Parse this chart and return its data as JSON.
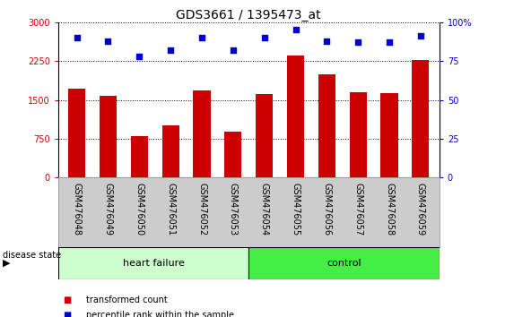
{
  "title": "GDS3661 / 1395473_at",
  "categories": [
    "GSM476048",
    "GSM476049",
    "GSM476050",
    "GSM476051",
    "GSM476052",
    "GSM476053",
    "GSM476054",
    "GSM476055",
    "GSM476056",
    "GSM476057",
    "GSM476058",
    "GSM476059"
  ],
  "bar_values": [
    1720,
    1580,
    800,
    1000,
    1680,
    880,
    1620,
    2350,
    2000,
    1650,
    1630,
    2270
  ],
  "scatter_values": [
    90,
    88,
    78,
    82,
    90,
    82,
    90,
    95,
    88,
    87,
    87,
    91
  ],
  "bar_color": "#cc0000",
  "scatter_color": "#0000cc",
  "ylim_left": [
    0,
    3000
  ],
  "ylim_right": [
    0,
    100
  ],
  "yticks_left": [
    0,
    750,
    1500,
    2250,
    3000
  ],
  "ytick_labels_left": [
    "0",
    "750",
    "1500",
    "2250",
    "3000"
  ],
  "yticks_right": [
    0,
    25,
    50,
    75,
    100
  ],
  "ytick_labels_right": [
    "0",
    "25",
    "50",
    "75",
    "100%"
  ],
  "heart_failure_count": 6,
  "control_count": 6,
  "heart_failure_label": "heart failure",
  "control_label": "control",
  "disease_state_label": "disease state",
  "legend_bar_label": "transformed count",
  "legend_scatter_label": "percentile rank within the sample",
  "heart_failure_color": "#ccffcc",
  "control_color": "#44ee44",
  "tick_area_color": "#cccccc",
  "bar_width": 0.55,
  "grid_color": "#000000",
  "title_fontsize": 10,
  "tick_fontsize": 7,
  "label_fontsize": 8,
  "legend_fontsize": 8
}
